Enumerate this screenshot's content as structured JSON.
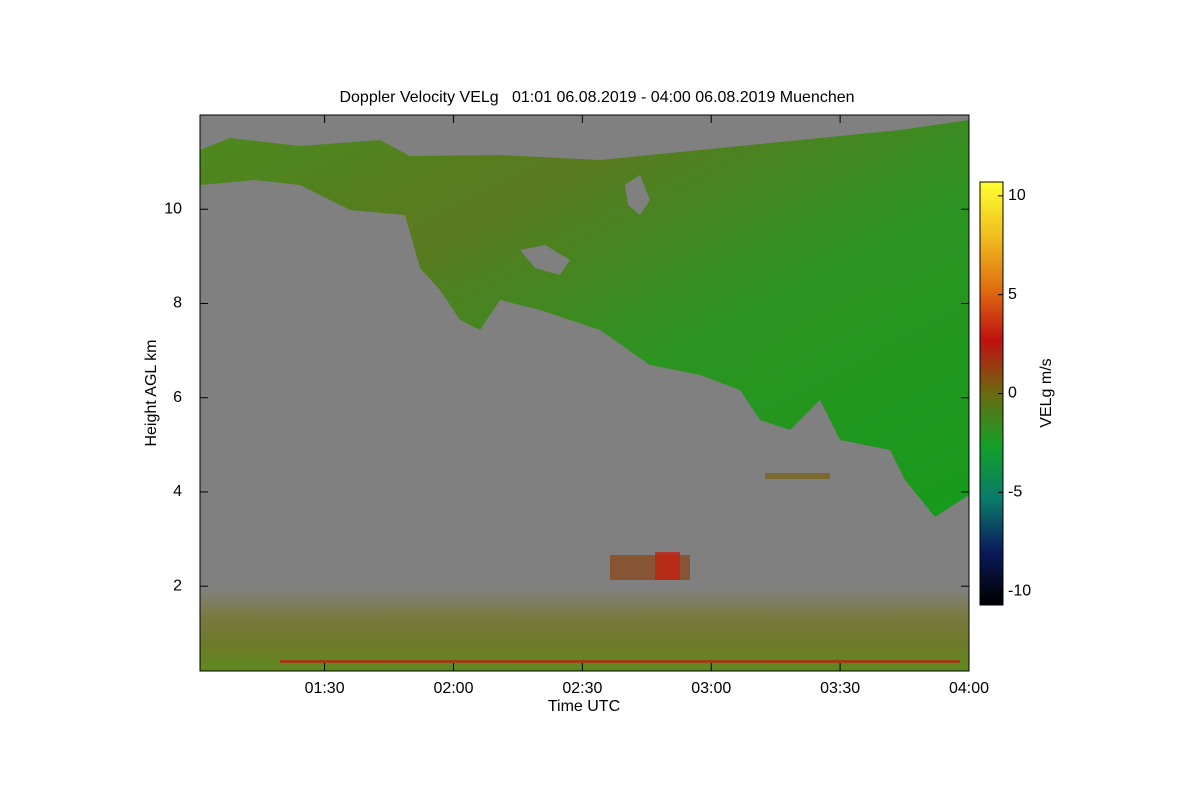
{
  "chart_data": {
    "type": "heatmap",
    "title": "Doppler Velocity VELg   01:01 06.08.2019 - 04:00 06.08.2019 Muenchen",
    "x_label": "Time UTC",
    "y_label": "Height AGL km",
    "xlim": [
      61,
      240
    ],
    "xticks": [
      {
        "value": 90,
        "label": "01:30"
      },
      {
        "value": 120,
        "label": "02:00"
      },
      {
        "value": 150,
        "label": "02:30"
      },
      {
        "value": 180,
        "label": "03:00"
      },
      {
        "value": 210,
        "label": "03:30"
      },
      {
        "value": 240,
        "label": "04:00"
      }
    ],
    "ylim": [
      0.2,
      12
    ],
    "yticks": [
      2,
      4,
      6,
      8,
      10
    ],
    "colorbar": {
      "label": "VELg m/s",
      "lim": [
        -10.7,
        10.7
      ],
      "ticks": [
        -10,
        -5,
        0,
        5,
        10
      ],
      "colors": [
        "#000000",
        "#0a1a5a",
        "#0a7a6a",
        "#12a028",
        "#6a6a10",
        "#c01010",
        "#e07010",
        "#f0c020",
        "#ffff30"
      ]
    }
  }
}
